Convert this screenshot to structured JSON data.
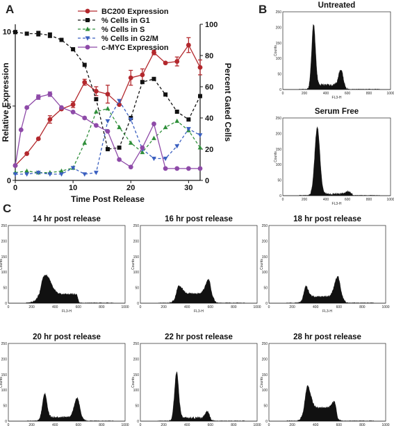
{
  "panel_labels": {
    "a": "A",
    "b": "B",
    "c": "C"
  },
  "chart_data": [
    {
      "panel": "A",
      "type": "line",
      "xlabel": "Time Post Release",
      "ylabel_left": "Relative Expression",
      "ylabel_right": "Percent Gated Cells",
      "xlim": [
        0,
        32
      ],
      "ylim_left": [
        0,
        10.5
      ],
      "ylim_right": [
        0,
        100
      ],
      "xticks": [
        0,
        10,
        20,
        30
      ],
      "yticks_left": [
        0,
        5,
        10
      ],
      "yticks_right": [
        0,
        20,
        40,
        60,
        80,
        100
      ],
      "legend_position": "top-center",
      "series": [
        {
          "name": "BC200 Expression",
          "axis": "left",
          "color": "#b3282d",
          "marker": "circle",
          "dash": "solid",
          "x": [
            0,
            2,
            4,
            6,
            8,
            10,
            12,
            14,
            16,
            18,
            20,
            22,
            24,
            26,
            28,
            30,
            32
          ],
          "y": [
            1.0,
            1.8,
            2.8,
            4.1,
            4.8,
            5.1,
            6.6,
            6.0,
            5.8,
            5.1,
            6.9,
            7.1,
            8.6,
            7.9,
            8.0,
            9.1,
            7.6
          ],
          "err": [
            0,
            0,
            0,
            0.25,
            0,
            0.2,
            0.2,
            0.3,
            0.6,
            0,
            0.5,
            0.4,
            0.15,
            0,
            0.3,
            0.5,
            0.5
          ]
        },
        {
          "name": "% Cells in G1",
          "axis": "right",
          "color": "#111111",
          "marker": "square",
          "dash": "dash",
          "x": [
            0,
            2,
            4,
            6,
            8,
            10,
            12,
            14,
            16,
            18,
            20,
            22,
            24,
            26,
            28,
            30,
            32
          ],
          "y": [
            95,
            94,
            94,
            93,
            90,
            84,
            74,
            52,
            20,
            21,
            40,
            63,
            65,
            55,
            44,
            39,
            54
          ],
          "err": [
            1,
            0,
            1.5,
            1.5,
            0,
            0,
            0,
            0,
            0,
            0,
            0,
            0,
            0,
            0,
            0,
            0,
            0
          ]
        },
        {
          "name": "% Cells in S",
          "axis": "right",
          "color": "#2f8f3a",
          "marker": "triangle",
          "dash": "dash",
          "x": [
            0,
            2,
            4,
            6,
            8,
            10,
            12,
            14,
            16,
            18,
            20,
            22,
            24,
            26,
            28,
            30,
            32
          ],
          "y": [
            5,
            6,
            5,
            5,
            6,
            8,
            24,
            44,
            46,
            34,
            24,
            18,
            27,
            34,
            38,
            32,
            21
          ],
          "err": [
            0,
            0,
            0,
            0,
            0,
            0,
            0,
            0,
            0,
            0,
            0,
            0,
            0,
            0,
            0,
            0,
            0
          ]
        },
        {
          "name": "% Cells in G2/M",
          "axis": "right",
          "color": "#3a5fc0",
          "marker": "triangle-down",
          "dash": "dash",
          "x": [
            0,
            2,
            4,
            6,
            8,
            10,
            12,
            14,
            16,
            18,
            20,
            22,
            24,
            26,
            28,
            30,
            32
          ],
          "y": [
            4,
            4,
            5,
            4,
            4,
            8,
            4,
            5,
            38,
            51,
            39,
            20,
            14,
            14,
            22,
            33,
            29
          ],
          "err": [
            0,
            0,
            0,
            0,
            0,
            0,
            0,
            0,
            0,
            0,
            0,
            0,
            0,
            0,
            0,
            0,
            0
          ]
        },
        {
          "name": "c-MYC Expression",
          "axis": "left",
          "color": "#8e4aa8",
          "marker": "circle",
          "dash": "solid",
          "x": [
            0,
            1,
            2,
            4,
            6,
            8,
            10,
            12,
            14,
            16,
            18,
            20,
            22,
            24,
            26,
            28,
            30,
            32
          ],
          "y": [
            1.0,
            3.4,
            4.9,
            5.6,
            5.8,
            4.9,
            4.6,
            4.2,
            3.7,
            3.3,
            1.4,
            0.9,
            2.2,
            3.8,
            0.8,
            0.8,
            0.8,
            0.8
          ],
          "err": [
            0,
            0,
            0,
            0.15,
            0.15,
            0,
            0,
            0,
            0,
            0,
            0,
            0,
            0,
            0,
            0,
            0,
            0,
            0
          ]
        }
      ]
    },
    {
      "panel": "B",
      "type": "area",
      "histograms": [
        {
          "title": "Untreated",
          "xlabel": "FL3-H",
          "ylabel": "Counts",
          "xlim": [
            0,
            1000
          ],
          "ylim": [
            0,
            250
          ],
          "xticks": [
            0,
            200,
            400,
            600,
            800,
            1000
          ],
          "yticks": [
            0,
            50,
            100,
            150,
            200,
            250
          ],
          "peaks": [
            {
              "center": 285,
              "width": 18,
              "height": 200
            },
            {
              "center": 540,
              "width": 22,
              "height": 50
            }
          ],
          "s_phase_level": 14,
          "noise": 8
        },
        {
          "title": "Serum Free",
          "xlabel": "FL3-H",
          "ylabel": "Counts",
          "xlim": [
            0,
            1000
          ],
          "ylim": [
            0,
            250
          ],
          "xticks": [
            0,
            200,
            400,
            600,
            800,
            1000
          ],
          "yticks": [
            0,
            50,
            100,
            150,
            200,
            250
          ],
          "peaks": [
            {
              "center": 320,
              "width": 24,
              "height": 215
            },
            {
              "center": 610,
              "width": 25,
              "height": 8
            }
          ],
          "s_phase_level": 5,
          "noise": 6
        }
      ]
    },
    {
      "panel": "C",
      "type": "area",
      "histograms": [
        {
          "title": "14 hr post release",
          "xlabel": "FL3-H",
          "ylabel": "Counts",
          "xlim": [
            0,
            1000
          ],
          "ylim": [
            0,
            250
          ],
          "xticks": [
            0,
            200,
            400,
            600,
            800,
            1000
          ],
          "yticks": [
            0,
            50,
            100,
            150,
            200,
            250
          ],
          "peaks": [
            {
              "center": 320,
              "width": 45,
              "height": 62
            }
          ],
          "s_phase_level": 28,
          "noise": 5
        },
        {
          "title": "16 hr post release",
          "xlabel": "FL3-H",
          "ylabel": "Counts",
          "xlim": [
            0,
            1000
          ],
          "ylim": [
            0,
            250
          ],
          "xticks": [
            0,
            200,
            400,
            600,
            800,
            1000
          ],
          "yticks": [
            0,
            50,
            100,
            150,
            200,
            250
          ],
          "peaks": [
            {
              "center": 330,
              "width": 30,
              "height": 25
            },
            {
              "center": 585,
              "width": 28,
              "height": 45
            }
          ],
          "s_phase_level": 30,
          "noise": 5
        },
        {
          "title": "18 hr post release",
          "xlabel": "FL3-H",
          "ylabel": "Counts",
          "xlim": [
            0,
            1000
          ],
          "ylim": [
            0,
            250
          ],
          "xticks": [
            0,
            200,
            400,
            600,
            800,
            1000
          ],
          "yticks": [
            0,
            50,
            100,
            150,
            200,
            250
          ],
          "peaks": [
            {
              "center": 315,
              "width": 22,
              "height": 35
            },
            {
              "center": 590,
              "width": 28,
              "height": 65
            }
          ],
          "s_phase_level": 20,
          "noise": 5
        },
        {
          "title": "20 hr post release",
          "xlabel": "FL3-H",
          "ylabel": "Counts",
          "xlim": [
            0,
            1000
          ],
          "ylim": [
            0,
            250
          ],
          "xticks": [
            0,
            200,
            400,
            600,
            800,
            1000
          ],
          "yticks": [
            0,
            50,
            100,
            150,
            200,
            250
          ],
          "peaks": [
            {
              "center": 310,
              "width": 20,
              "height": 78
            },
            {
              "center": 590,
              "width": 25,
              "height": 62
            }
          ],
          "s_phase_level": 12,
          "noise": 5
        },
        {
          "title": "22 hr post release",
          "xlabel": "FL3-H",
          "ylabel": "Counts",
          "xlim": [
            0,
            1000
          ],
          "ylim": [
            0,
            250
          ],
          "xticks": [
            0,
            200,
            400,
            600,
            800,
            1000
          ],
          "yticks": [
            0,
            50,
            100,
            150,
            200,
            250
          ],
          "peaks": [
            {
              "center": 310,
              "width": 18,
              "height": 150
            },
            {
              "center": 575,
              "width": 20,
              "height": 20
            }
          ],
          "s_phase_level": 10,
          "noise": 6
        },
        {
          "title": "28 hr post release",
          "xlabel": "FL3-H",
          "ylabel": "Counts",
          "xlim": [
            0,
            1000
          ],
          "ylim": [
            0,
            250
          ],
          "xticks": [
            0,
            200,
            400,
            600,
            800,
            1000
          ],
          "yticks": [
            0,
            50,
            100,
            150,
            200,
            250
          ],
          "peaks": [
            {
              "center": 330,
              "width": 28,
              "height": 70
            },
            {
              "center": 560,
              "width": 22,
              "height": 20
            }
          ],
          "s_phase_level": 42,
          "noise": 5
        }
      ]
    }
  ]
}
